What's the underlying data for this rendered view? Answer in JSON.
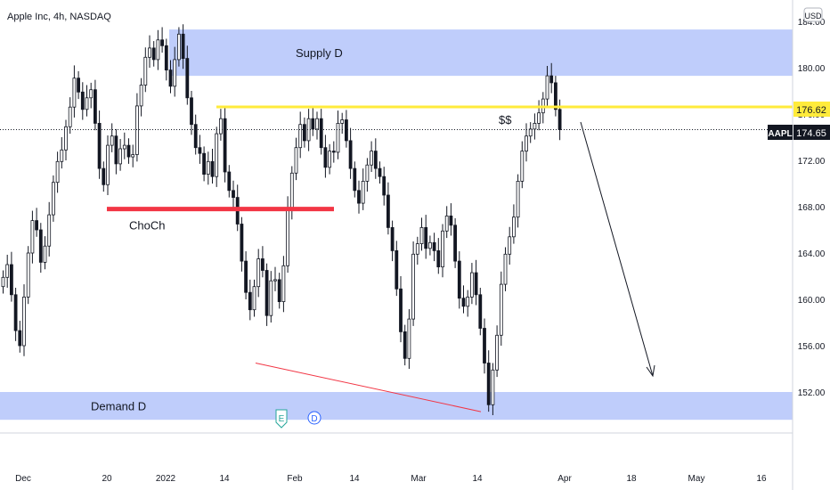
{
  "header": {
    "symbol_title": "Apple Inc, 4h, NASDAQ"
  },
  "currency": "USD",
  "price_axis": {
    "ticks": [
      152.0,
      156.0,
      160.0,
      164.0,
      168.0,
      172.0,
      176.0,
      180.0,
      184.0
    ]
  },
  "time_axis": {
    "ticks": [
      "Dec",
      "20",
      "2022",
      "14",
      "Feb",
      "14",
      "Mar",
      "14",
      "Apr",
      "18",
      "May",
      "16"
    ]
  },
  "badges": {
    "symbol": "AAPL",
    "last_price": "174.65",
    "level_price": "176.62"
  },
  "annotations": {
    "supply": "Supply D",
    "demand": "Demand D",
    "choch": "ChoCh",
    "ss": "$$",
    "earnings_marker": "E",
    "dividend_marker": "D"
  },
  "colors": {
    "zone": "#bfcdfb",
    "yellow_line": "#ffeb3b",
    "choch_line": "#f23645",
    "trendline": "#f23645",
    "candle": "#131722",
    "dotted_price": "#131722",
    "badge_yellow": "#ffeb3b",
    "badge_dark": "#131722"
  },
  "chart_data": {
    "type": "candlestick",
    "title": "Apple Inc, 4h, NASDAQ",
    "ylim": [
      148.4,
      185.8
    ],
    "y_scale": "linear",
    "grid": false,
    "zones": [
      {
        "label": "Supply D",
        "from": 179.3,
        "to": 183.3
      },
      {
        "label": "Demand D",
        "from": 149.6,
        "to": 152.0
      }
    ],
    "horizontal_levels": [
      {
        "label": "$$",
        "price": 176.62,
        "color": "#ffeb3b"
      },
      {
        "label": "ChoCh",
        "price": 167.8,
        "color": "#f23645"
      }
    ],
    "last_price": 174.65,
    "closes": [
      161.9,
      163.0,
      160.4,
      157.3,
      156.0,
      160.2,
      164.0,
      166.8,
      166.0,
      163.2,
      164.6,
      167.3,
      170.1,
      171.9,
      172.9,
      174.9,
      176.6,
      179.1,
      177.9,
      176.4,
      177.4,
      178.1,
      175.2,
      171.3,
      169.9,
      173.3,
      174.1,
      171.7,
      173.0,
      173.3,
      172.3,
      172.5,
      176.7,
      178.5,
      180.9,
      181.7,
      180.7,
      182.4,
      181.9,
      179.8,
      178.4,
      180.7,
      182.9,
      180.8,
      177.4,
      175.1,
      173.1,
      172.6,
      170.8,
      171.9,
      170.6,
      174.3,
      175.6,
      171.0,
      169.4,
      168.8,
      166.5,
      163.3,
      160.6,
      159.1,
      161.1,
      163.5,
      162.5,
      158.6,
      161.6,
      161.7,
      159.8,
      162.9,
      167.8,
      170.9,
      173.1,
      175.1,
      173.7,
      175.6,
      174.7,
      175.6,
      173.1,
      171.4,
      172.8,
      172.7,
      175.2,
      175.5,
      173.7,
      171.3,
      169.4,
      168.3,
      170.2,
      171.6,
      172.8,
      171.3,
      170.6,
      169.0,
      166.2,
      164.2,
      160.9,
      157.2,
      154.9,
      158.3,
      163.9,
      164.8,
      166.2,
      164.4,
      164.9,
      164.2,
      162.8,
      165.9,
      167.2,
      166.4,
      163.3,
      160.1,
      159.4,
      160.2,
      162.3,
      160.4,
      157.5,
      154.5,
      150.9,
      153.9,
      156.9,
      161.3,
      163.9,
      165.4,
      167.1,
      170.2,
      172.8,
      174.1,
      174.7,
      175.2,
      176.1,
      177.3,
      179.3,
      178.7,
      176.4,
      174.65
    ]
  }
}
